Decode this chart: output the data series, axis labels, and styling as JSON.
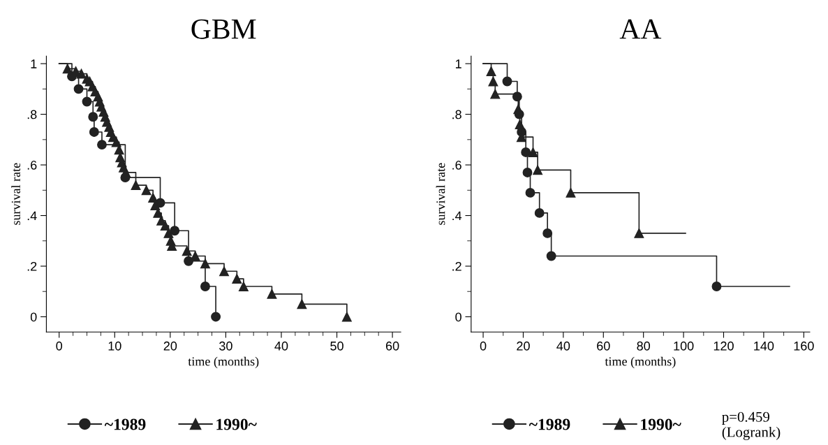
{
  "chart_data": [
    {
      "type": "step",
      "title": "GBM",
      "xlabel": "time (months)",
      "ylabel": "survival rate",
      "legend": "bottom",
      "xlim": [
        -2.3,
        61.5
      ],
      "ylim": [
        -0.06,
        1.03
      ],
      "xticks": [
        0,
        10,
        20,
        30,
        40,
        50,
        60,
        {
          "value": 2.5,
          "label": null
        },
        {
          "value": 5,
          "label": null
        },
        {
          "value": 7.5,
          "label": null
        },
        {
          "value": 12.5,
          "label": null
        },
        {
          "value": 15,
          "label": null
        },
        {
          "value": 17.5,
          "label": null
        },
        {
          "value": 22.5,
          "label": null
        },
        {
          "value": 25,
          "label": null
        },
        {
          "value": 27.5,
          "label": null
        },
        {
          "value": 32.5,
          "label": null
        },
        {
          "value": 35,
          "label": null
        },
        {
          "value": 37.5,
          "label": null
        },
        {
          "value": 42.5,
          "label": null
        },
        {
          "value": 45,
          "label": null
        },
        {
          "value": 47.5,
          "label": null
        },
        {
          "value": 52.5,
          "label": null
        },
        {
          "value": 55,
          "label": null
        },
        {
          "value": 57.5,
          "label": null
        }
      ],
      "yticks": [
        0,
        {
          "value": 0.2,
          "label": ".2"
        },
        {
          "value": 0.4,
          "label": ".4"
        },
        {
          "value": 0.6,
          "label": ".6"
        },
        {
          "value": 0.8,
          "label": ".8"
        },
        1,
        {
          "value": 0.1,
          "label": null
        },
        {
          "value": 0.3,
          "label": null
        },
        {
          "value": 0.5,
          "label": null
        },
        {
          "value": 0.7,
          "label": null
        },
        {
          "value": 0.9,
          "label": null
        }
      ],
      "series": [
        {
          "name": "~1989",
          "color": "#222222",
          "marker": "circle",
          "x": [
            0,
            2.3,
            3.5,
            5,
            6.1,
            6.3,
            7.7,
            11.9,
            18.2,
            20.8,
            23.3,
            26.3,
            28.2
          ],
          "values": [
            1,
            0.95,
            0.9,
            0.85,
            0.79,
            0.73,
            0.68,
            0.55,
            0.45,
            0.34,
            0.22,
            0.12,
            0
          ]
        },
        {
          "name": "1990~",
          "color": "#222222",
          "marker": "triangle",
          "x": [
            0,
            1.5,
            3,
            4,
            5,
            5.5,
            6,
            6.5,
            7,
            7.3,
            7.6,
            8,
            8.3,
            8.6,
            9,
            9.3,
            9.7,
            10.3,
            10.8,
            11,
            11.3,
            11.6,
            12,
            13.8,
            15.7,
            16.9,
            17.3,
            17.8,
            18.4,
            19.1,
            19.7,
            20.1,
            20.3,
            23,
            24.5,
            26.3,
            29.7,
            32,
            33.2,
            38.3,
            43.7,
            51.8
          ],
          "values": [
            1,
            0.98,
            0.97,
            0.96,
            0.94,
            0.93,
            0.91,
            0.89,
            0.87,
            0.85,
            0.83,
            0.81,
            0.79,
            0.77,
            0.75,
            0.73,
            0.71,
            0.69,
            0.66,
            0.63,
            0.61,
            0.59,
            0.57,
            0.52,
            0.5,
            0.47,
            0.44,
            0.41,
            0.38,
            0.36,
            0.33,
            0.3,
            0.28,
            0.26,
            0.24,
            0.21,
            0.18,
            0.15,
            0.12,
            0.09,
            0.05,
            0
          ]
        }
      ]
    },
    {
      "type": "step",
      "title": "AA",
      "xlabel": "time (months)",
      "ylabel": "survival rate",
      "legend": "bottom",
      "annotations": [
        "p=0.459\n(Logrank)"
      ],
      "xlim": [
        -6,
        163
      ],
      "ylim": [
        -0.06,
        1.03
      ],
      "xticks": [
        0,
        20,
        40,
        60,
        80,
        100,
        120,
        140,
        160,
        {
          "value": 10,
          "label": null
        },
        {
          "value": 30,
          "label": null
        },
        {
          "value": 50,
          "label": null
        },
        {
          "value": 70,
          "label": null
        },
        {
          "value": 90,
          "label": null
        },
        {
          "value": 110,
          "label": null
        },
        {
          "value": 130,
          "label": null
        },
        {
          "value": 150,
          "label": null
        }
      ],
      "yticks": [
        0,
        {
          "value": 0.2,
          "label": ".2"
        },
        {
          "value": 0.4,
          "label": ".4"
        },
        {
          "value": 0.6,
          "label": ".6"
        },
        {
          "value": 0.8,
          "label": ".8"
        },
        1,
        {
          "value": 0.1,
          "label": null
        },
        {
          "value": 0.3,
          "label": null
        },
        {
          "value": 0.5,
          "label": null
        },
        {
          "value": 0.7,
          "label": null
        },
        {
          "value": 0.9,
          "label": null
        }
      ],
      "series": [
        {
          "name": "~1989",
          "color": "#222222",
          "marker": "circle",
          "x": [
            0,
            12,
            17,
            18,
            19.2,
            21.3,
            22.1,
            23.5,
            28.1,
            32.1,
            34,
            116.5,
            152.9
          ],
          "values": [
            1,
            0.93,
            0.87,
            0.8,
            0.73,
            0.65,
            0.57,
            0.49,
            0.41,
            0.33,
            0.24,
            0.12,
            0.12
          ]
        },
        {
          "name": "1990~",
          "color": "#222222",
          "marker": "triangle",
          "x": [
            0,
            4,
            5,
            6,
            17.5,
            18.3,
            19.1,
            24.9,
            27.2,
            43.7,
            77.8,
            101
          ],
          "values": [
            1,
            0.97,
            0.93,
            0.88,
            0.82,
            0.76,
            0.71,
            0.65,
            0.58,
            0.49,
            0.33,
            0.33
          ]
        }
      ]
    }
  ]
}
